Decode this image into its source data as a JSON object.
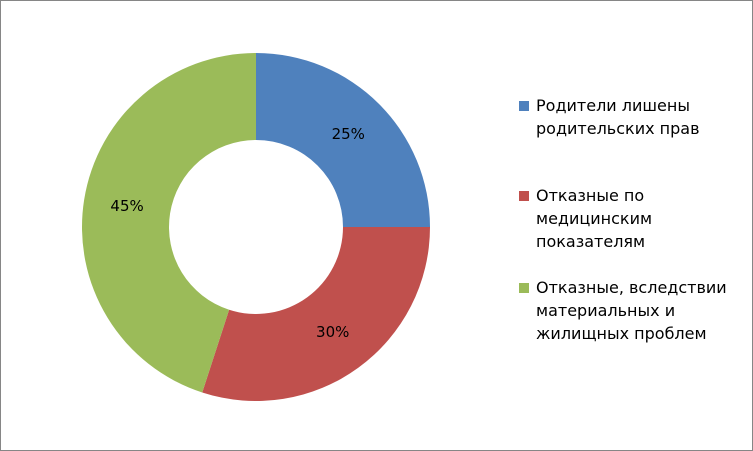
{
  "chart_data": {
    "type": "donut",
    "categories": [
      "Родители лишены родительских прав",
      "Отказные по медицинским показателям",
      "Отказные, вследствии материальных и жилищных проблем"
    ],
    "values": [
      25,
      30,
      45
    ],
    "value_labels": [
      "25%",
      "30%",
      "45%"
    ],
    "colors": [
      "#4f81bd",
      "#c0504d",
      "#9bbb59"
    ],
    "legend": "right"
  }
}
